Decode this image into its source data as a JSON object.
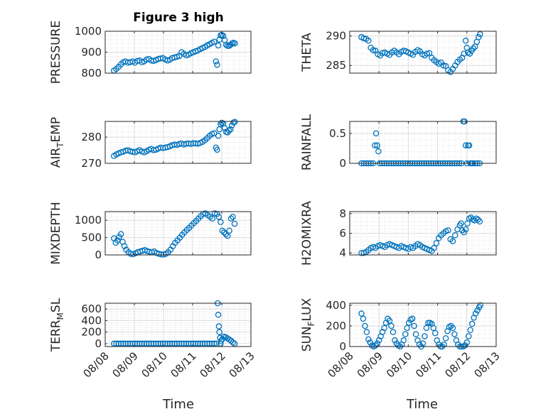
{
  "figure_title": "Figure 3 high",
  "x_axis_label": "Time",
  "marker_color": "#0072bd",
  "chart_data": [
    {
      "type": "scatter",
      "id": "pressure",
      "title": "Figure 3 high",
      "ylabel": "PRESSURE",
      "ylabel_sub": "",
      "xlim": [
        8,
        13
      ],
      "ylim": [
        800,
        1000
      ],
      "yticks": [
        800,
        900,
        1000
      ],
      "yticklabels": [
        "800",
        "900",
        "1000"
      ],
      "xticks": [
        8,
        9,
        10,
        11,
        12,
        13
      ],
      "xticklabels": [
        "08/08",
        "08/09",
        "08/10",
        "08/11",
        "08/12",
        "08/13"
      ],
      "show_xticklabels": false,
      "grid": true,
      "x": [
        8.3,
        8.38,
        8.46,
        8.54,
        8.62,
        8.7,
        8.78,
        8.86,
        8.94,
        9.02,
        9.1,
        9.18,
        9.26,
        9.34,
        9.42,
        9.5,
        9.58,
        9.66,
        9.74,
        9.82,
        9.9,
        9.98,
        10.06,
        10.14,
        10.22,
        10.3,
        10.38,
        10.46,
        10.54,
        10.62,
        10.7,
        10.78,
        10.86,
        10.94,
        11.02,
        11.1,
        11.18,
        11.26,
        11.34,
        11.42,
        11.5,
        11.58,
        11.66,
        11.74,
        11.8,
        11.84,
        11.88,
        11.92,
        11.96,
        12.0,
        12.05,
        12.1,
        12.15,
        12.2,
        12.25,
        12.3,
        12.35,
        12.4,
        12.45
      ],
      "y": [
        812,
        820,
        830,
        842,
        852,
        856,
        850,
        852,
        856,
        850,
        858,
        860,
        852,
        856,
        865,
        868,
        860,
        858,
        862,
        868,
        870,
        872,
        865,
        860,
        864,
        872,
        875,
        878,
        882,
        900,
        892,
        885,
        888,
        895,
        900,
        904,
        908,
        915,
        920,
        925,
        932,
        938,
        944,
        950,
        856,
        840,
        932,
        960,
        980,
        982,
        978,
        958,
        935,
        930,
        930,
        935,
        942,
        945,
        942
      ]
    },
    {
      "type": "scatter",
      "id": "theta",
      "title": "",
      "ylabel": "THETA",
      "ylabel_sub": "",
      "xlim": [
        8,
        13
      ],
      "ylim": [
        283.7,
        290.8
      ],
      "yticks": [
        285,
        290
      ],
      "yticklabels": [
        "285",
        "290"
      ],
      "xticks": [
        8,
        9,
        10,
        11,
        12,
        13
      ],
      "xticklabels": [
        "08/08",
        "08/09",
        "08/10",
        "08/11",
        "08/12",
        "08/13"
      ],
      "show_xticklabels": false,
      "grid": true,
      "x": [
        8.4,
        8.48,
        8.56,
        8.64,
        8.72,
        8.8,
        8.88,
        8.96,
        9.04,
        9.12,
        9.2,
        9.28,
        9.36,
        9.44,
        9.52,
        9.6,
        9.68,
        9.76,
        9.84,
        9.92,
        10.0,
        10.08,
        10.16,
        10.24,
        10.32,
        10.4,
        10.48,
        10.56,
        10.64,
        10.72,
        10.8,
        10.88,
        10.96,
        11.04,
        11.12,
        11.2,
        11.28,
        11.36,
        11.44,
        11.52,
        11.6,
        11.68,
        11.76,
        11.84,
        11.9,
        11.96,
        12.0,
        12.04,
        12.1,
        12.16,
        12.22,
        12.28,
        12.34,
        12.4,
        12.45
      ],
      "y": [
        289.8,
        289.6,
        289.5,
        289.2,
        288.0,
        287.6,
        287.5,
        286.9,
        286.7,
        287.1,
        287.2,
        287.0,
        286.8,
        287.2,
        287.5,
        287.2,
        286.9,
        287.3,
        287.5,
        287.4,
        287.2,
        287.0,
        286.8,
        287.3,
        287.6,
        287.4,
        286.9,
        286.7,
        287.0,
        287.1,
        286.3,
        285.9,
        285.6,
        285.3,
        285.5,
        285.0,
        284.9,
        284.2,
        283.9,
        284.4,
        285.0,
        285.6,
        286.0,
        286.3,
        287.0,
        289.2,
        288.0,
        287.2,
        287.0,
        287.5,
        287.9,
        288.2,
        289.0,
        289.8,
        290.3
      ]
    },
    {
      "type": "scatter",
      "id": "air_temp",
      "title": "",
      "ylabel": "AIR",
      "ylabel_sub": "T",
      "ylabel_tail": "EMP",
      "xlim": [
        8,
        13
      ],
      "ylim": [
        270,
        286
      ],
      "yticks": [
        270,
        280
      ],
      "yticklabels": [
        "270",
        "280"
      ],
      "xticks": [
        8,
        9,
        10,
        11,
        12,
        13
      ],
      "xticklabels": [
        "08/08",
        "08/09",
        "08/10",
        "08/11",
        "08/12",
        "08/13"
      ],
      "show_xticklabels": false,
      "grid": true,
      "x": [
        8.3,
        8.38,
        8.46,
        8.54,
        8.62,
        8.7,
        8.78,
        8.86,
        8.94,
        9.02,
        9.1,
        9.18,
        9.26,
        9.34,
        9.42,
        9.5,
        9.58,
        9.66,
        9.74,
        9.82,
        9.9,
        9.98,
        10.06,
        10.14,
        10.22,
        10.3,
        10.38,
        10.46,
        10.54,
        10.62,
        10.7,
        10.78,
        10.86,
        10.94,
        11.02,
        11.1,
        11.18,
        11.26,
        11.34,
        11.42,
        11.5,
        11.58,
        11.66,
        11.74,
        11.8,
        11.84,
        11.88,
        11.92,
        11.96,
        12.0,
        12.05,
        12.1,
        12.15,
        12.2,
        12.25,
        12.3,
        12.35,
        12.4,
        12.45
      ],
      "y": [
        272.8,
        273.4,
        273.8,
        274.2,
        274.4,
        274.8,
        275.0,
        274.6,
        274.4,
        274.2,
        274.6,
        275.0,
        274.5,
        274.2,
        274.6,
        275.2,
        275.5,
        275.0,
        275.2,
        275.6,
        276.0,
        275.8,
        276.0,
        276.2,
        276.5,
        276.9,
        277.2,
        277.0,
        277.4,
        277.6,
        277.2,
        277.5,
        277.6,
        277.4,
        277.7,
        277.6,
        277.5,
        277.8,
        278.2,
        278.8,
        279.6,
        280.5,
        281.2,
        281.5,
        276.0,
        275.2,
        280.5,
        283.0,
        285.0,
        285.5,
        285.2,
        283.5,
        282.0,
        281.8,
        282.5,
        283.0,
        284.5,
        285.6,
        285.8
      ]
    },
    {
      "type": "scatter",
      "id": "rainfall",
      "title": "",
      "ylabel": "RAINFALL",
      "ylabel_sub": "",
      "xlim": [
        8,
        13
      ],
      "ylim": [
        0,
        0.7
      ],
      "yticks": [
        0,
        0.5
      ],
      "yticklabels": [
        "0",
        "0.5"
      ],
      "xticks": [
        8,
        9,
        10,
        11,
        12,
        13
      ],
      "xticklabels": [
        "08/08",
        "08/09",
        "08/10",
        "08/11",
        "08/12",
        "08/13"
      ],
      "show_xticklabels": false,
      "grid": true,
      "x": [
        8.4,
        8.48,
        8.56,
        8.64,
        8.72,
        8.8,
        8.86,
        8.9,
        8.94,
        8.98,
        9.02,
        9.1,
        9.18,
        9.26,
        9.34,
        9.42,
        9.5,
        9.58,
        9.66,
        9.74,
        9.82,
        9.9,
        9.98,
        10.06,
        10.14,
        10.22,
        10.3,
        10.38,
        10.46,
        10.54,
        10.62,
        10.7,
        10.78,
        10.86,
        10.94,
        11.02,
        11.1,
        11.18,
        11.26,
        11.34,
        11.42,
        11.5,
        11.58,
        11.66,
        11.74,
        11.82,
        11.88,
        11.92,
        11.96,
        12.0,
        12.04,
        12.08,
        12.12,
        12.16,
        12.2,
        12.28,
        12.36,
        12.44
      ],
      "y": [
        0,
        0,
        0,
        0,
        0,
        0,
        0.3,
        0.5,
        0.3,
        0.2,
        0,
        0,
        0,
        0,
        0,
        0,
        0,
        0,
        0,
        0,
        0,
        0,
        0,
        0,
        0,
        0,
        0,
        0,
        0,
        0,
        0,
        0,
        0,
        0,
        0,
        0,
        0,
        0,
        0,
        0,
        0,
        0,
        0,
        0,
        0,
        0,
        0.7,
        0.7,
        0.3,
        0,
        0.3,
        0.3,
        0,
        0,
        0,
        0,
        0,
        0
      ]
    },
    {
      "type": "scatter",
      "id": "mixdepth",
      "title": "",
      "ylabel": "MIXDEPTH",
      "ylabel_sub": "",
      "xlim": [
        8,
        13
      ],
      "ylim": [
        0,
        1250
      ],
      "yticks": [
        0,
        500,
        1000
      ],
      "yticklabels": [
        "0",
        "500",
        "1000"
      ],
      "xticks": [
        8,
        9,
        10,
        11,
        12,
        13
      ],
      "xticklabels": [
        "08/08",
        "08/09",
        "08/10",
        "08/11",
        "08/12",
        "08/13"
      ],
      "show_xticklabels": false,
      "grid": true,
      "x": [
        8.3,
        8.36,
        8.42,
        8.48,
        8.54,
        8.6,
        8.66,
        8.72,
        8.8,
        8.88,
        8.96,
        9.04,
        9.12,
        9.2,
        9.28,
        9.36,
        9.44,
        9.52,
        9.6,
        9.68,
        9.76,
        9.84,
        9.92,
        10.0,
        10.08,
        10.16,
        10.24,
        10.32,
        10.4,
        10.48,
        10.56,
        10.64,
        10.72,
        10.8,
        10.88,
        10.96,
        11.04,
        11.12,
        11.2,
        11.28,
        11.36,
        11.44,
        11.52,
        11.6,
        11.68,
        11.76,
        11.84,
        11.9,
        11.96,
        12.02,
        12.08,
        12.14,
        12.2,
        12.26,
        12.32,
        12.38,
        12.44
      ],
      "y": [
        480,
        350,
        420,
        520,
        600,
        380,
        250,
        150,
        80,
        30,
        20,
        50,
        80,
        100,
        120,
        140,
        110,
        90,
        80,
        100,
        60,
        30,
        15,
        10,
        30,
        80,
        150,
        250,
        350,
        420,
        500,
        580,
        650,
        720,
        780,
        850,
        920,
        980,
        1050,
        1120,
        1180,
        1200,
        1150,
        1100,
        1050,
        1200,
        1180,
        1100,
        950,
        700,
        650,
        600,
        550,
        700,
        1050,
        1100,
        900
      ]
    },
    {
      "type": "scatter",
      "id": "h2omixra",
      "title": "",
      "ylabel": "H2OMIXRA",
      "ylabel_sub": "",
      "xlim": [
        8,
        13
      ],
      "ylim": [
        3.8,
        8.2
      ],
      "yticks": [
        4,
        6,
        8
      ],
      "yticklabels": [
        "4",
        "6",
        "8"
      ],
      "xticks": [
        8,
        9,
        10,
        11,
        12,
        13
      ],
      "xticklabels": [
        "08/08",
        "08/09",
        "08/10",
        "08/11",
        "08/12",
        "08/13"
      ],
      "show_xticklabels": false,
      "grid": true,
      "x": [
        8.4,
        8.48,
        8.56,
        8.64,
        8.72,
        8.8,
        8.88,
        8.96,
        9.04,
        9.12,
        9.2,
        9.28,
        9.36,
        9.44,
        9.52,
        9.6,
        9.68,
        9.76,
        9.84,
        9.92,
        10.0,
        10.08,
        10.16,
        10.24,
        10.32,
        10.4,
        10.48,
        10.56,
        10.64,
        10.72,
        10.8,
        10.88,
        10.96,
        11.04,
        11.12,
        11.2,
        11.28,
        11.36,
        11.44,
        11.52,
        11.6,
        11.68,
        11.76,
        11.8,
        11.84,
        11.9,
        11.96,
        12.02,
        12.08,
        12.14,
        12.2,
        12.26,
        12.32,
        12.38,
        12.44
      ],
      "y": [
        4.0,
        4.0,
        4.1,
        4.3,
        4.5,
        4.6,
        4.5,
        4.7,
        4.8,
        4.7,
        4.6,
        4.8,
        4.9,
        4.8,
        4.7,
        4.6,
        4.5,
        4.7,
        4.6,
        4.5,
        4.4,
        4.6,
        4.5,
        4.7,
        4.9,
        4.8,
        4.6,
        4.5,
        4.4,
        4.3,
        4.2,
        4.5,
        5.0,
        5.5,
        5.8,
        6.0,
        6.2,
        6.3,
        5.4,
        5.2,
        5.8,
        6.4,
        6.8,
        7.0,
        6.3,
        6.1,
        6.4,
        7.0,
        7.5,
        7.6,
        7.4,
        7.3,
        7.5,
        7.4,
        7.2
      ]
    },
    {
      "type": "scatter",
      "id": "terr_msl",
      "title": "",
      "ylabel": "TERR",
      "ylabel_sub": "M",
      "ylabel_tail": "SL",
      "xlim": [
        8,
        13
      ],
      "ylim": [
        -50,
        700
      ],
      "yticks": [
        0,
        200,
        400,
        600
      ],
      "yticklabels": [
        "0",
        "200",
        "400",
        "600"
      ],
      "xticks": [
        8,
        9,
        10,
        11,
        12,
        13
      ],
      "xticklabels": [
        "08/08",
        "08/09",
        "08/10",
        "08/11",
        "08/12",
        "08/13"
      ],
      "show_xticklabels": true,
      "grid": true,
      "x": [
        8.3,
        8.38,
        8.46,
        8.54,
        8.62,
        8.7,
        8.78,
        8.86,
        8.94,
        9.02,
        9.1,
        9.18,
        9.26,
        9.34,
        9.42,
        9.5,
        9.58,
        9.66,
        9.74,
        9.82,
        9.9,
        9.98,
        10.06,
        10.14,
        10.22,
        10.3,
        10.38,
        10.46,
        10.54,
        10.62,
        10.7,
        10.78,
        10.86,
        10.94,
        11.02,
        11.1,
        11.18,
        11.26,
        11.34,
        11.42,
        11.5,
        11.58,
        11.66,
        11.74,
        11.82,
        11.86,
        11.88,
        11.9,
        11.92,
        11.94,
        11.96,
        11.98,
        12.02,
        12.08,
        12.14,
        12.2,
        12.26,
        12.32,
        12.38,
        12.44
      ],
      "y": [
        0,
        0,
        0,
        0,
        0,
        0,
        0,
        0,
        0,
        0,
        0,
        0,
        0,
        0,
        0,
        0,
        0,
        0,
        0,
        0,
        0,
        0,
        0,
        0,
        0,
        0,
        0,
        0,
        0,
        0,
        0,
        0,
        0,
        0,
        0,
        0,
        0,
        0,
        0,
        0,
        0,
        0,
        0,
        0,
        0,
        700,
        500,
        300,
        200,
        100,
        0,
        50,
        80,
        120,
        110,
        90,
        70,
        50,
        20,
        0
      ]
    },
    {
      "type": "scatter",
      "id": "sun_flux",
      "title": "",
      "ylabel": "SUN",
      "ylabel_sub": "F",
      "ylabel_tail": "LUX",
      "xlim": [
        8,
        13
      ],
      "ylim": [
        0,
        420
      ],
      "yticks": [
        0,
        200,
        400
      ],
      "yticklabels": [
        "0",
        "200",
        "400"
      ],
      "xticks": [
        8,
        9,
        10,
        11,
        12,
        13
      ],
      "xticklabels": [
        "08/08",
        "08/09",
        "08/10",
        "08/11",
        "08/12",
        "08/13"
      ],
      "show_xticklabels": true,
      "grid": true,
      "x": [
        8.4,
        8.46,
        8.52,
        8.58,
        8.64,
        8.7,
        8.76,
        8.82,
        8.88,
        8.94,
        9.0,
        9.06,
        9.12,
        9.18,
        9.24,
        9.3,
        9.36,
        9.42,
        9.48,
        9.54,
        9.6,
        9.66,
        9.72,
        9.78,
        9.84,
        9.9,
        9.96,
        10.02,
        10.08,
        10.14,
        10.2,
        10.26,
        10.32,
        10.38,
        10.44,
        10.5,
        10.56,
        10.62,
        10.68,
        10.74,
        10.8,
        10.86,
        10.92,
        10.98,
        11.04,
        11.1,
        11.16,
        11.22,
        11.28,
        11.34,
        11.4,
        11.46,
        11.52,
        11.58,
        11.64,
        11.7,
        11.76,
        11.82,
        11.88,
        11.94,
        12.0,
        12.06,
        12.12,
        12.18,
        12.24,
        12.3,
        12.36,
        12.42,
        12.46
      ],
      "y": [
        320,
        270,
        200,
        140,
        70,
        40,
        10,
        0,
        10,
        30,
        60,
        100,
        140,
        180,
        230,
        270,
        250,
        200,
        140,
        60,
        30,
        10,
        0,
        20,
        60,
        120,
        180,
        230,
        260,
        270,
        200,
        120,
        60,
        20,
        0,
        30,
        100,
        180,
        230,
        230,
        220,
        180,
        130,
        60,
        20,
        0,
        0,
        20,
        80,
        150,
        190,
        200,
        180,
        120,
        60,
        20,
        0,
        0,
        0,
        10,
        40,
        100,
        160,
        220,
        280,
        320,
        350,
        380,
        400
      ]
    }
  ]
}
